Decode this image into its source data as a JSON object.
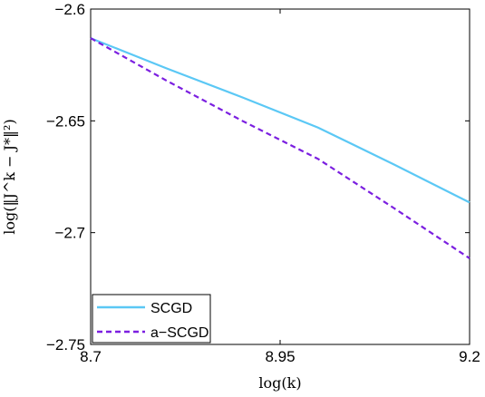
{
  "chart_data": {
    "type": "line",
    "xlabel": "log(k)",
    "ylabel": "log(‖J^k − J*‖²)",
    "xlim": [
      8.7,
      9.2
    ],
    "ylim": [
      -2.75,
      -2.6
    ],
    "xticks": [
      8.7,
      8.95,
      9.2
    ],
    "xtick_labels": [
      "8.7",
      "8.95",
      "9.2"
    ],
    "yticks": [
      -2.75,
      -2.7,
      -2.65,
      -2.6
    ],
    "ytick_labels": [
      "−2.75",
      "−2.7",
      "−2.65",
      "−2.6"
    ],
    "grid": false,
    "legend_position": "bottom-left",
    "series": [
      {
        "name": "SCGD",
        "color": "#5bc8f5",
        "style": "solid",
        "x": [
          8.7,
          8.8,
          8.9,
          9.0,
          9.1,
          9.2
        ],
        "y": [
          -2.613,
          -2.6265,
          -2.6395,
          -2.653,
          -2.6695,
          -2.6865
        ]
      },
      {
        "name": "a−SCGD",
        "color": "#7b1fe0",
        "style": "dashed",
        "x": [
          8.7,
          8.8,
          8.9,
          9.0,
          9.1,
          9.2
        ],
        "y": [
          -2.613,
          -2.632,
          -2.65,
          -2.667,
          -2.689,
          -2.7115
        ]
      }
    ]
  }
}
